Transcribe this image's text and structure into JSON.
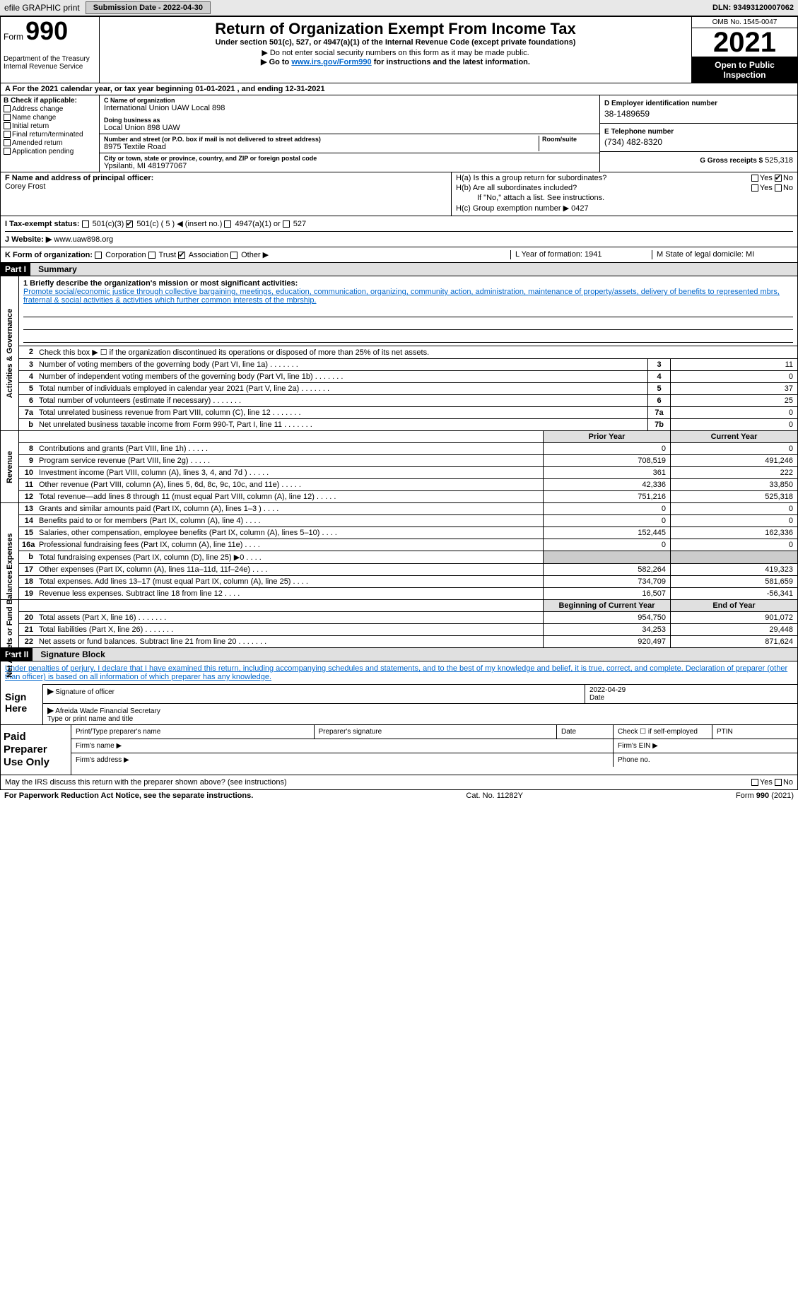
{
  "topbar": {
    "efile": "efile GRAPHIC print",
    "submission": "Submission Date - 2022-04-30",
    "dln": "DLN: 93493120007062"
  },
  "header": {
    "form_label": "Form",
    "form_num": "990",
    "title": "Return of Organization Exempt From Income Tax",
    "subtitle": "Under section 501(c), 527, or 4947(a)(1) of the Internal Revenue Code (except private foundations)",
    "nossn": "▶ Do not enter social security numbers on this form as it may be made public.",
    "go_prefix": "▶ Go to ",
    "go_link": "www.irs.gov/Form990",
    "go_suffix": " for instructions and the latest information.",
    "dept": "Department of the Treasury Internal Revenue Service",
    "omb": "OMB No. 1545-0047",
    "year": "2021",
    "open": "Open to Public Inspection"
  },
  "period": "A For the 2021 calendar year, or tax year beginning 01-01-2021    , and ending 12-31-2021",
  "box_b": {
    "hdr": "B Check if applicable:",
    "items": [
      "Address change",
      "Name change",
      "Initial return",
      "Final return/terminated",
      "Amended return",
      "Application pending"
    ]
  },
  "box_c": {
    "name_lbl": "C Name of organization",
    "name": "International Union UAW Local 898",
    "dba_lbl": "Doing business as",
    "dba": "Local Union 898 UAW",
    "addr_lbl": "Number and street (or P.O. box if mail is not delivered to street address)",
    "room_lbl": "Room/suite",
    "addr": "8975 Textile Road",
    "city_lbl": "City or town, state or province, country, and ZIP or foreign postal code",
    "city": "Ypsilanti, MI  481977067"
  },
  "box_d": {
    "lbl": "D Employer identification number",
    "val": "38-1489659"
  },
  "box_e": {
    "lbl": "E Telephone number",
    "val": "(734) 482-8320"
  },
  "box_g": {
    "lbl": "G Gross receipts $",
    "val": "525,318"
  },
  "box_f": {
    "lbl": "F  Name and address of principal officer:",
    "val": "Corey Frost"
  },
  "box_h": {
    "a": "H(a)  Is this a group return for subordinates?",
    "b": "H(b)  Are all subordinates included?",
    "bnote": "If \"No,\" attach a list. See instructions.",
    "c": "H(c)  Group exemption number ▶   0427",
    "yes": "Yes",
    "no": "No"
  },
  "box_i": {
    "lbl": "I   Tax-exempt status:",
    "ins": "◀ (insert no.)"
  },
  "box_j": {
    "lbl": "J   Website: ▶",
    "val": "www.uaw898.org"
  },
  "box_k": "K Form of organization:",
  "box_l": "L Year of formation: 1941",
  "box_m": "M State of legal domicile: MI",
  "part1": {
    "label": "Part I",
    "title": "Summary"
  },
  "mission_lbl": "1  Briefly describe the organization's mission or most significant activities:",
  "mission": "Promote social/economic justice through collective bargaining, meetings, education, communication, organizing, community action, administration, maintenance of property/assets, delivery of benefits to represented mbrs, fraternal & social activities & activities which further common interests of the mbrship.",
  "line2": "Check this box ▶ ☐  if the organization discontinued its operations or disposed of more than 25% of its net assets.",
  "gov_lines": [
    {
      "n": "3",
      "t": "Number of voting members of the governing body (Part VI, line 1a)",
      "b": "3",
      "v": "11"
    },
    {
      "n": "4",
      "t": "Number of independent voting members of the governing body (Part VI, line 1b)",
      "b": "4",
      "v": "0"
    },
    {
      "n": "5",
      "t": "Total number of individuals employed in calendar year 2021 (Part V, line 2a)",
      "b": "5",
      "v": "37"
    },
    {
      "n": "6",
      "t": "Total number of volunteers (estimate if necessary)",
      "b": "6",
      "v": "25"
    },
    {
      "n": "7a",
      "t": "Total unrelated business revenue from Part VIII, column (C), line 12",
      "b": "7a",
      "v": "0"
    },
    {
      "n": "b",
      "t": "Net unrelated business taxable income from Form 990-T, Part I, line 11",
      "b": "7b",
      "v": "0"
    }
  ],
  "rev_hdr": {
    "prior": "Prior Year",
    "curr": "Current Year"
  },
  "rev_lines": [
    {
      "n": "8",
      "t": "Contributions and grants (Part VIII, line 1h)",
      "p": "0",
      "c": "0"
    },
    {
      "n": "9",
      "t": "Program service revenue (Part VIII, line 2g)",
      "p": "708,519",
      "c": "491,246"
    },
    {
      "n": "10",
      "t": "Investment income (Part VIII, column (A), lines 3, 4, and 7d )",
      "p": "361",
      "c": "222"
    },
    {
      "n": "11",
      "t": "Other revenue (Part VIII, column (A), lines 5, 6d, 8c, 9c, 10c, and 11e)",
      "p": "42,336",
      "c": "33,850"
    },
    {
      "n": "12",
      "t": "Total revenue—add lines 8 through 11 (must equal Part VIII, column (A), line 12)",
      "p": "751,216",
      "c": "525,318"
    }
  ],
  "exp_lines": [
    {
      "n": "13",
      "t": "Grants and similar amounts paid (Part IX, column (A), lines 1–3 )",
      "p": "0",
      "c": "0"
    },
    {
      "n": "14",
      "t": "Benefits paid to or for members (Part IX, column (A), line 4)",
      "p": "0",
      "c": "0"
    },
    {
      "n": "15",
      "t": "Salaries, other compensation, employee benefits (Part IX, column (A), lines 5–10)",
      "p": "152,445",
      "c": "162,336"
    },
    {
      "n": "16a",
      "t": "Professional fundraising fees (Part IX, column (A), line 11e)",
      "p": "0",
      "c": "0"
    },
    {
      "n": "b",
      "t": "Total fundraising expenses (Part IX, column (D), line 25) ▶0",
      "p": "",
      "c": ""
    },
    {
      "n": "17",
      "t": "Other expenses (Part IX, column (A), lines 11a–11d, 11f–24e)",
      "p": "582,264",
      "c": "419,323"
    },
    {
      "n": "18",
      "t": "Total expenses. Add lines 13–17 (must equal Part IX, column (A), line 25)",
      "p": "734,709",
      "c": "581,659"
    },
    {
      "n": "19",
      "t": "Revenue less expenses. Subtract line 18 from line 12",
      "p": "16,507",
      "c": "-56,341"
    }
  ],
  "na_hdr": {
    "beg": "Beginning of Current Year",
    "end": "End of Year"
  },
  "na_lines": [
    {
      "n": "20",
      "t": "Total assets (Part X, line 16)",
      "p": "954,750",
      "c": "901,072"
    },
    {
      "n": "21",
      "t": "Total liabilities (Part X, line 26)",
      "p": "34,253",
      "c": "29,448"
    },
    {
      "n": "22",
      "t": "Net assets or fund balances. Subtract line 21 from line 20",
      "p": "920,497",
      "c": "871,624"
    }
  ],
  "vtabs": {
    "gov": "Activities & Governance",
    "rev": "Revenue",
    "exp": "Expenses",
    "na": "Net Assets or Fund Balances"
  },
  "part2": {
    "label": "Part II",
    "title": "Signature Block"
  },
  "sig_decl": "Under penalties of perjury, I declare that I have examined this return, including accompanying schedules and statements, and to the best of my knowledge and belief, it is true, correct, and complete. Declaration of preparer (other than officer) is based on all information of which preparer has any knowledge.",
  "sign_here": "Sign Here",
  "sig_off": "Signature of officer",
  "sig_date": "Date",
  "sig_date_val": "2022-04-29",
  "sig_name": "Afreida Wade  Financial Secretary",
  "sig_name_lbl": "Type or print name and title",
  "paid": {
    "lbl": "Paid Preparer Use Only",
    "pname": "Print/Type preparer's name",
    "psig": "Preparer's signature",
    "pdate": "Date",
    "pcheck": "Check ☐ if self-employed",
    "ptin": "PTIN",
    "fname": "Firm's name   ▶",
    "fein": "Firm's EIN ▶",
    "faddr": "Firm's address ▶",
    "phone": "Phone no."
  },
  "irs_discuss": "May the IRS discuss this return with the preparer shown above? (see instructions)",
  "footer": {
    "pra": "For Paperwork Reduction Act Notice, see the separate instructions.",
    "cat": "Cat. No. 11282Y",
    "form": "Form 990 (2021)"
  }
}
